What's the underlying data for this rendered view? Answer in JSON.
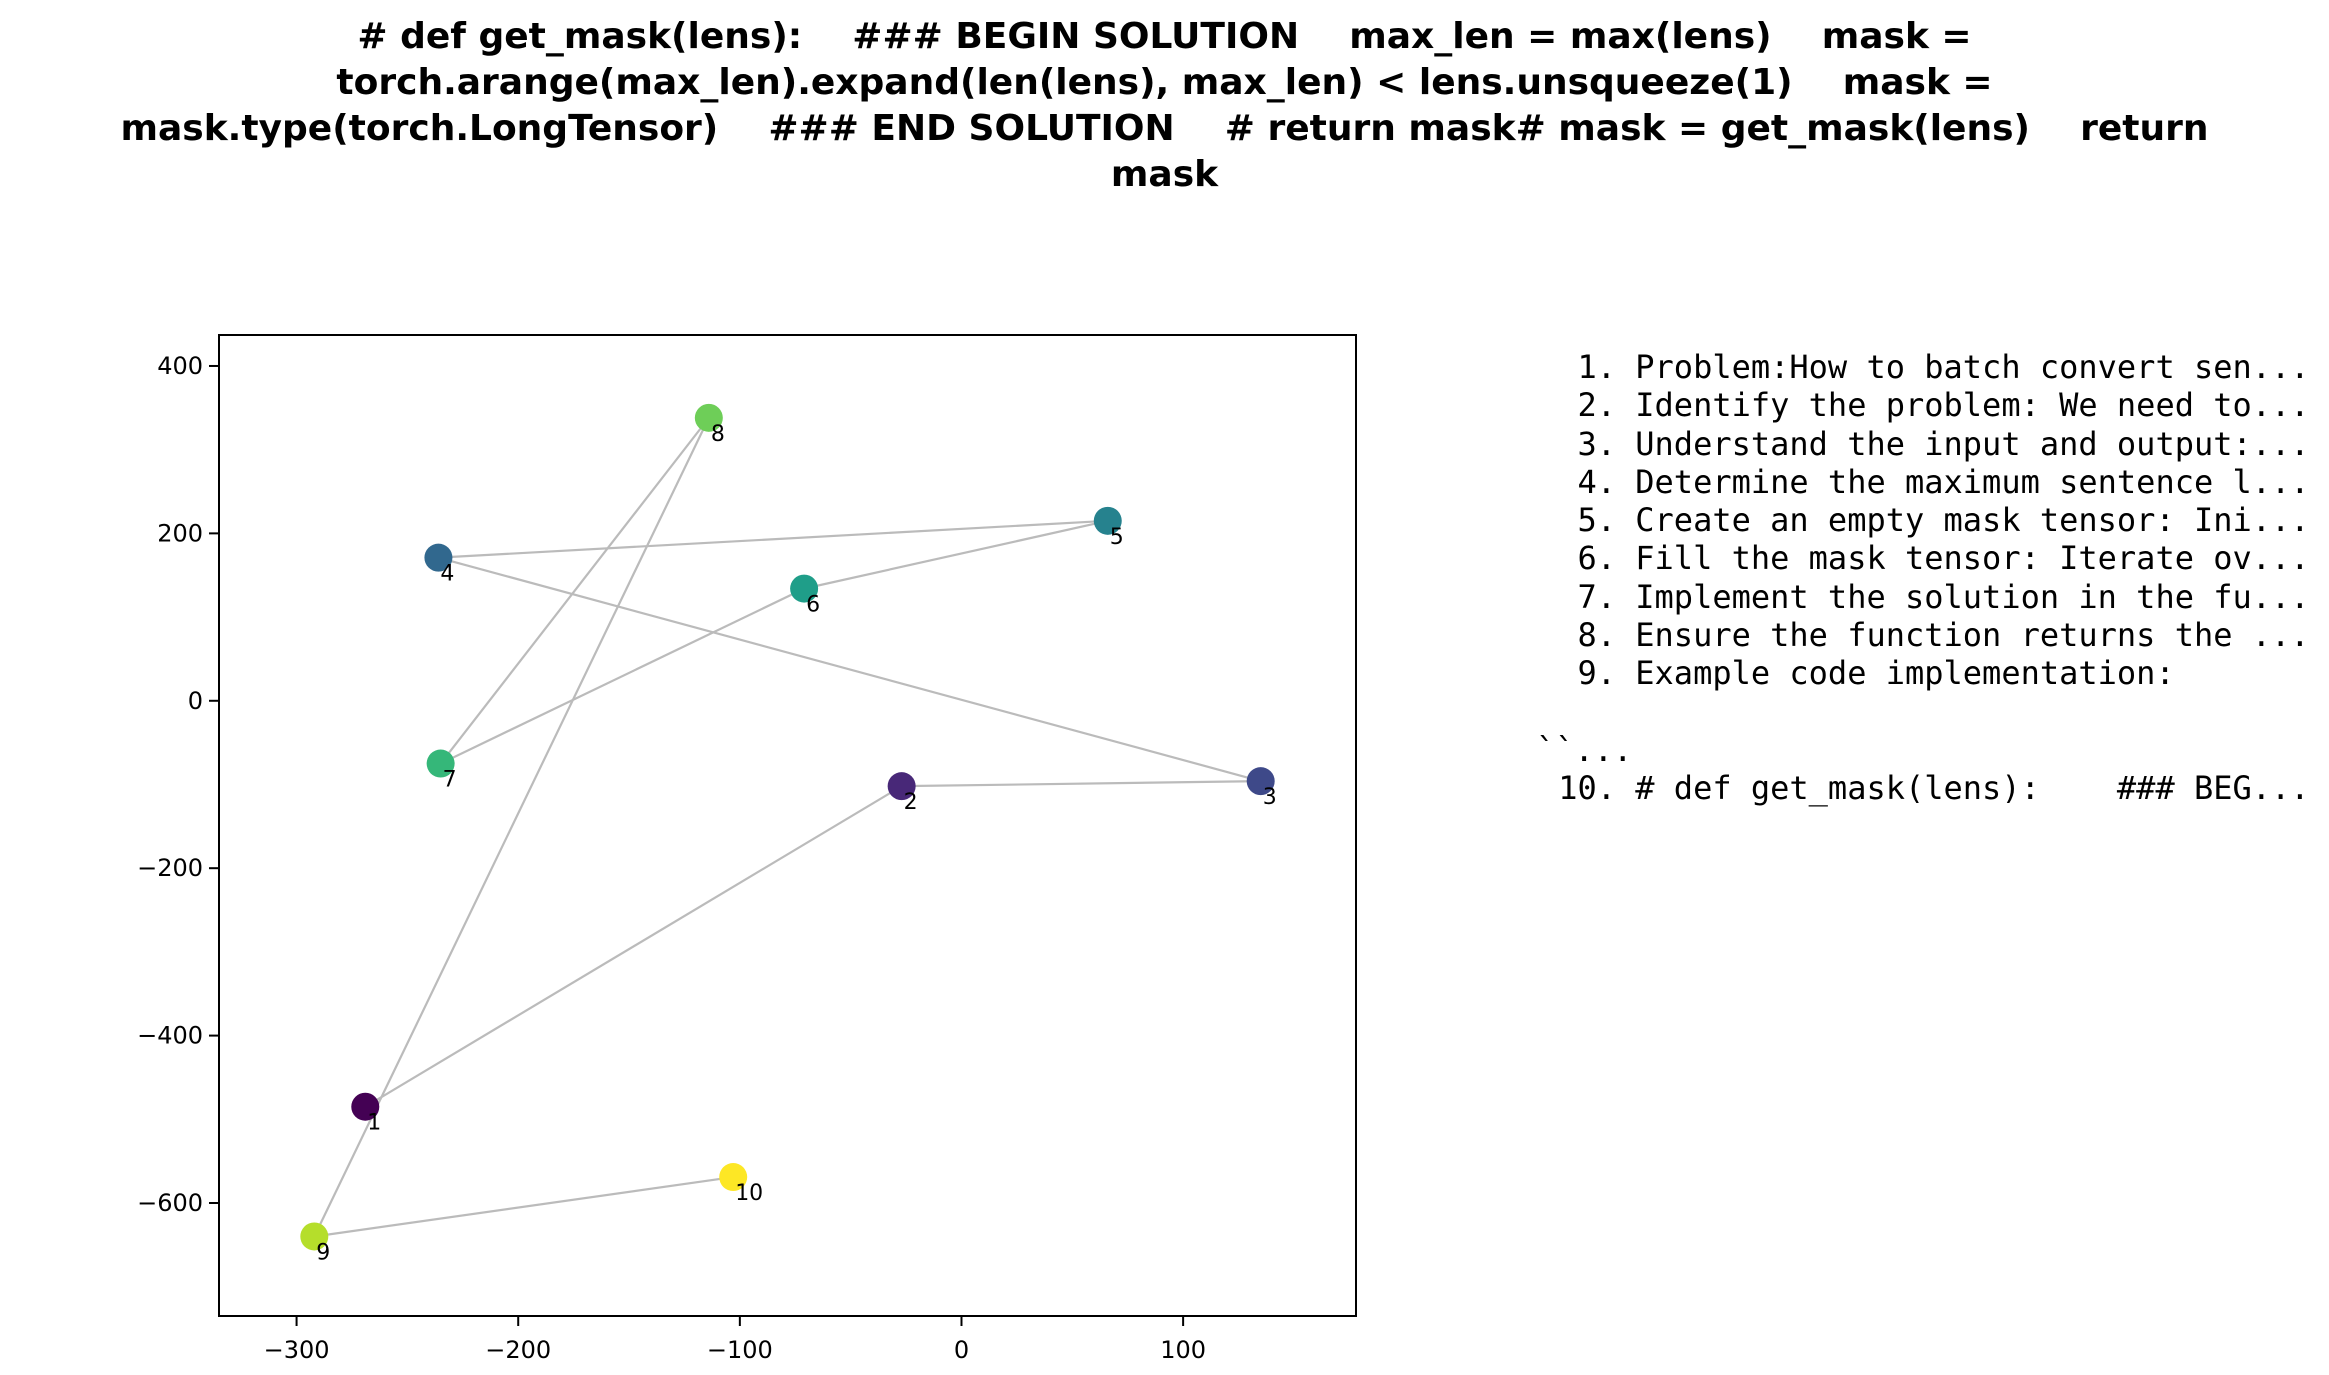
{
  "chart_data": {
    "type": "scatter",
    "title_lines": [
      "# def get_mask(lens):    ### BEGIN SOLUTION    max_len = max(lens)    mask =",
      "torch.arange(max_len).expand(len(lens), max_len) < lens.unsqueeze(1)    mask =",
      "mask.type(torch.LongTensor)    ### END SOLUTION    # return mask# mask = get_mask(lens)    return",
      "mask"
    ],
    "xlabel": "",
    "ylabel": "",
    "xlim": [
      -335,
      178
    ],
    "ylim": [
      -735,
      437
    ],
    "x_ticks": [
      -300,
      -200,
      -100,
      0,
      100
    ],
    "y_ticks": [
      -600,
      -400,
      -200,
      0,
      200,
      400
    ],
    "x_tick_labels": [
      "−300",
      "−200",
      "−100",
      "0",
      "100"
    ],
    "y_tick_labels": [
      "−600",
      "−400",
      "−200",
      "0",
      "200",
      "400"
    ],
    "grid": false,
    "colormap": "viridis",
    "line_color": "#bbbbbb",
    "points": [
      {
        "label": "1",
        "x": -269,
        "y": -485,
        "color": "#440154"
      },
      {
        "label": "2",
        "x": -27,
        "y": -102,
        "color": "#482878"
      },
      {
        "label": "3",
        "x": 135,
        "y": -96,
        "color": "#3e4989"
      },
      {
        "label": "4",
        "x": -236,
        "y": 171,
        "color": "#31688e"
      },
      {
        "label": "5",
        "x": 66,
        "y": 215,
        "color": "#26828e"
      },
      {
        "label": "6",
        "x": -71,
        "y": 134,
        "color": "#1f9e89"
      },
      {
        "label": "7",
        "x": -235,
        "y": -75,
        "color": "#35b779"
      },
      {
        "label": "8",
        "x": -114,
        "y": 338,
        "color": "#6ece58"
      },
      {
        "label": "9",
        "x": -292,
        "y": -640,
        "color": "#b5de2b"
      },
      {
        "label": "10",
        "x": -103,
        "y": -569,
        "color": "#fde725"
      }
    ]
  },
  "steps": [
    {
      "num": "1.",
      "text": "Problem:How to batch convert sen..."
    },
    {
      "num": "2.",
      "text": "Identify the problem: We need to..."
    },
    {
      "num": "3.",
      "text": "Understand the input and output:..."
    },
    {
      "num": "4.",
      "text": "Determine the maximum sentence l..."
    },
    {
      "num": "5.",
      "text": "Create an empty mask tensor: Ini..."
    },
    {
      "num": "6.",
      "text": "Fill the mask tensor: Iterate ov..."
    },
    {
      "num": "7.",
      "text": "Implement the solution in the fu..."
    },
    {
      "num": "8.",
      "text": "Ensure the function returns the ..."
    },
    {
      "num": "9.",
      "text": "Example code implementation:"
    },
    {
      "num": "10.",
      "text": "# def get_mask(lens):    ### BEG..."
    }
  ],
  "steps_extra_line": "``..."
}
